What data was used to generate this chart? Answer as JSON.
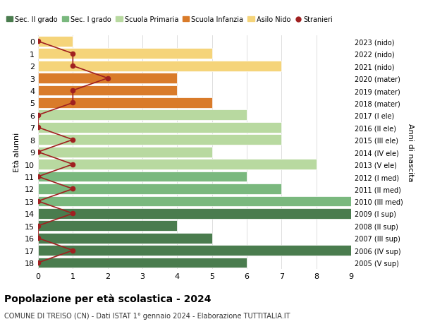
{
  "ages": [
    18,
    17,
    16,
    15,
    14,
    13,
    12,
    11,
    10,
    9,
    8,
    7,
    6,
    5,
    4,
    3,
    2,
    1,
    0
  ],
  "years": [
    "2005 (V sup)",
    "2006 (IV sup)",
    "2007 (III sup)",
    "2008 (II sup)",
    "2009 (I sup)",
    "2010 (III med)",
    "2011 (II med)",
    "2012 (I med)",
    "2013 (V ele)",
    "2014 (IV ele)",
    "2015 (III ele)",
    "2016 (II ele)",
    "2017 (I ele)",
    "2018 (mater)",
    "2019 (mater)",
    "2020 (mater)",
    "2021 (nido)",
    "2022 (nido)",
    "2023 (nido)"
  ],
  "bar_values": [
    6,
    9,
    5,
    4,
    9,
    9,
    7,
    6,
    8,
    5,
    7,
    7,
    6,
    5,
    4,
    4,
    7,
    5,
    1
  ],
  "bar_colors": [
    "#4a7c4e",
    "#4a7c4e",
    "#4a7c4e",
    "#4a7c4e",
    "#4a7c4e",
    "#7ab87e",
    "#7ab87e",
    "#7ab87e",
    "#b8d9a0",
    "#b8d9a0",
    "#b8d9a0",
    "#b8d9a0",
    "#b8d9a0",
    "#d97b2a",
    "#d97b2a",
    "#d97b2a",
    "#f5d47a",
    "#f5d47a",
    "#f5d47a"
  ],
  "stranieri_x_values": [
    0,
    1,
    0,
    0,
    1,
    0,
    1,
    0,
    1,
    0,
    1,
    0,
    0,
    1,
    1,
    2,
    1,
    1,
    0
  ],
  "legend_labels": [
    "Sec. II grado",
    "Sec. I grado",
    "Scuola Primaria",
    "Scuola Infanzia",
    "Asilo Nido",
    "Stranieri"
  ],
  "legend_colors": [
    "#4a7c4e",
    "#7ab87e",
    "#b8d9a0",
    "#d97b2a",
    "#f5d47a",
    "#a02020"
  ],
  "ylabel_left": "Età alunni",
  "ylabel_right": "Anni di nascita",
  "title": "Popolazione per età scolastica - 2024",
  "subtitle": "COMUNE DI TREISO (CN) - Dati ISTAT 1° gennaio 2024 - Elaborazione TUTTITALIA.IT",
  "xlim": [
    0,
    9
  ],
  "stranieri_color": "#a02020",
  "background_color": "#ffffff",
  "grid_color": "#dddddd"
}
